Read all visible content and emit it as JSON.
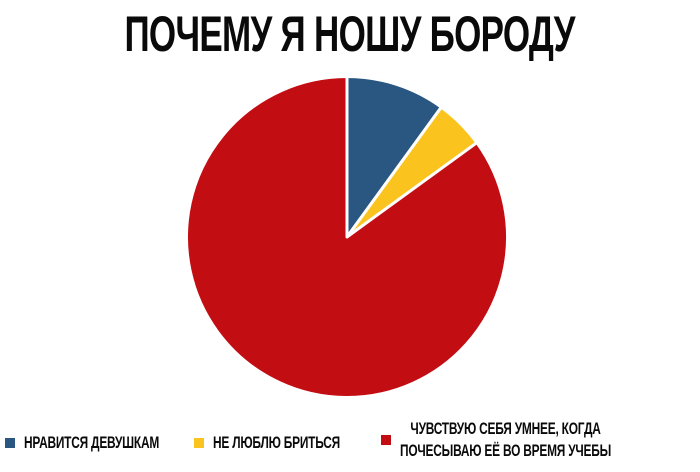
{
  "page": {
    "background_color": "#FFFFFF",
    "text_color": "#0A0A0A"
  },
  "chart_data": {
    "type": "pie",
    "title": "ПОЧЕМУ Я НОШУ БОРОДУ",
    "labels": [
      "НРАВИТСЯ ДЕВУШКАМ",
      "НЕ ЛЮБЛЮ БРИТЬСЯ",
      "ЧУВСТВУЮ СЕБЯ УМНЕЕ, КОГДА ПОЧЕСЫВАЮ ЕЁ ВО ВРЕМЯ УЧЕБЫ"
    ],
    "values": [
      10,
      5,
      85
    ],
    "value_unit": "percent",
    "colors": [
      "#2A5682",
      "#FBC31D",
      "#C20D12"
    ],
    "separator_color": "#FFFFFF",
    "start_angle_deg": 0,
    "direction": "clockwise",
    "legend_position": "bottom"
  },
  "legend": {
    "items": [
      {
        "color": "#2A5682",
        "lines": [
          "НРАВИТСЯ ДЕВУШКАМ"
        ]
      },
      {
        "color": "#FBC31D",
        "lines": [
          "НЕ ЛЮБЛЮ БРИТЬСЯ"
        ]
      },
      {
        "color": "#C20D12",
        "lines": [
          "ЧУВСТВУЮ СЕБЯ УМНЕЕ, КОГДА",
          "ПОЧЕСЫВАЮ ЕЁ ВО ВРЕМЯ УЧЕБЫ"
        ]
      }
    ]
  }
}
